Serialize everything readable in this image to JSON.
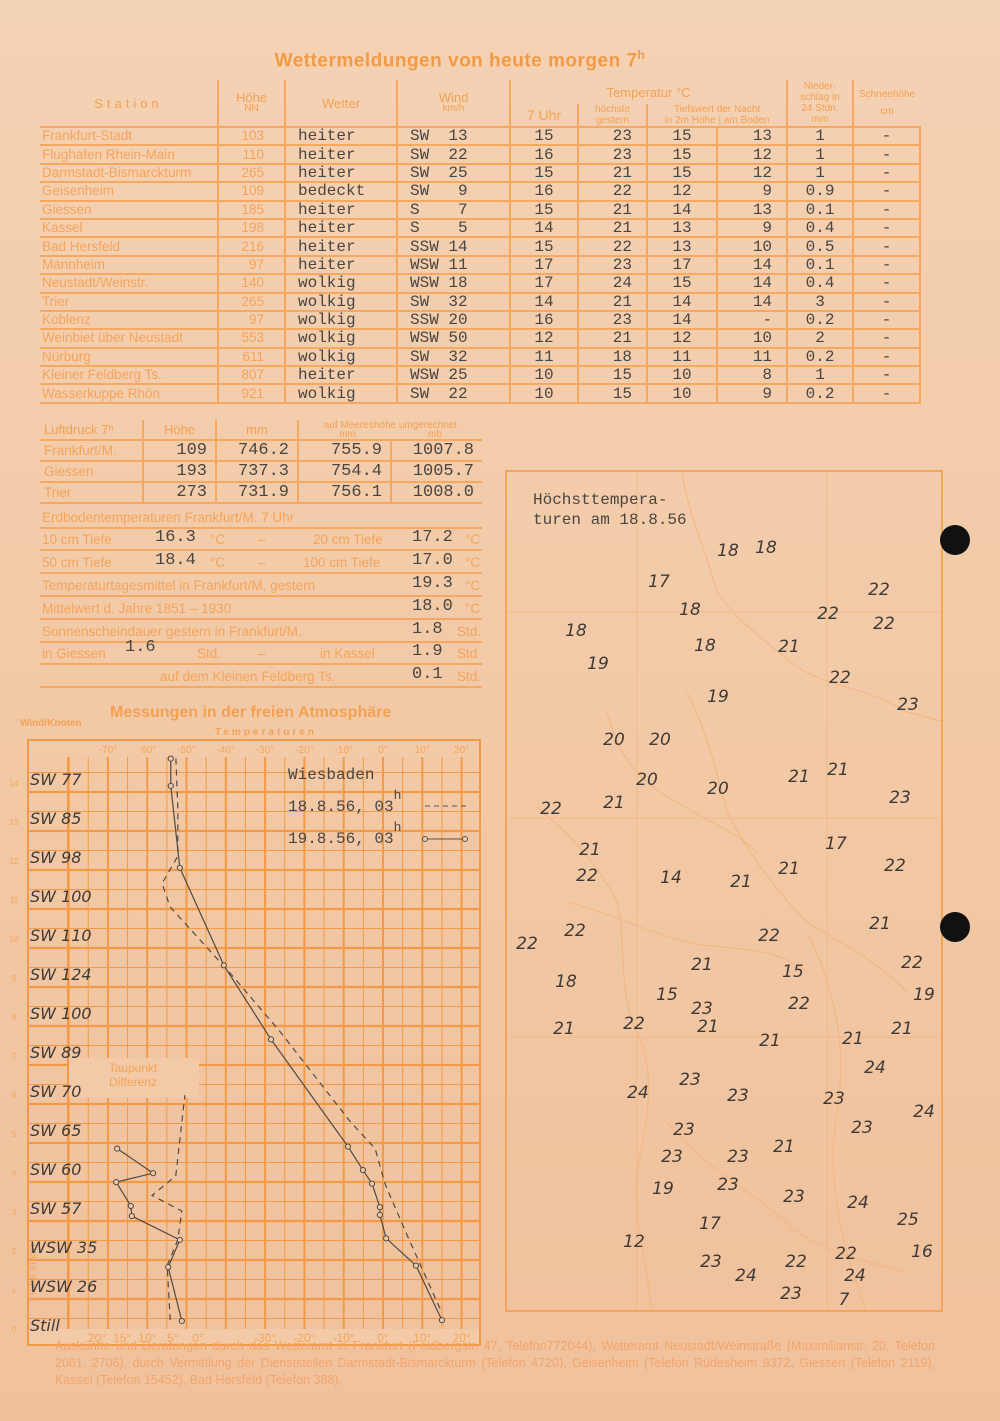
{
  "title": {
    "text": "Wettermeldungen von heute morgen 7",
    "sup": "h"
  },
  "weather_table": {
    "headers": {
      "station": "Station",
      "hoehe": "Höhe",
      "hoehe_unit": "NN",
      "wetter": "Wetter",
      "wind": "Wind",
      "wind_unit": "km/h",
      "temperatur": "Temperatur °C",
      "uhr7": "7 Uhr",
      "hoechste": "höchste gestern",
      "tiefstwert": "Tiefswert der Nacht",
      "in2m": "in 2m Höhe",
      "amboden": "am Boden",
      "niederschlag": "Nieder-schlag in 24 Stdn.",
      "niederschlag_unit": "mm",
      "schnee": "Schneehöhe",
      "schnee_unit": "cm"
    },
    "rows": [
      {
        "station": "Frankfurt-Stadt",
        "hoehe": "103",
        "wetter": "heiter",
        "wind_dir": "SW",
        "wind_speed": "13",
        "t7": "15",
        "tmax": "23",
        "tmin2m": "15",
        "tboden": "13",
        "nied": "1",
        "schnee": "-"
      },
      {
        "station": "Flughafen Rhein-Main",
        "hoehe": "110",
        "wetter": "heiter",
        "wind_dir": "SW",
        "wind_speed": "22",
        "t7": "16",
        "tmax": "23",
        "tmin2m": "15",
        "tboden": "12",
        "nied": "1",
        "schnee": "-"
      },
      {
        "station": "Darmstadt-Bismarckturm",
        "hoehe": "265",
        "wetter": "heiter",
        "wind_dir": "SW",
        "wind_speed": "25",
        "t7": "15",
        "tmax": "21",
        "tmin2m": "15",
        "tboden": "12",
        "nied": "1",
        "schnee": "-"
      },
      {
        "station": "Geisenheim",
        "hoehe": "109",
        "wetter": "bedeckt",
        "wind_dir": "SW",
        "wind_speed": "9",
        "t7": "16",
        "tmax": "22",
        "tmin2m": "12",
        "tboden": "9",
        "nied": "0.9",
        "schnee": "-"
      },
      {
        "station": "Giessen",
        "hoehe": "185",
        "wetter": "heiter",
        "wind_dir": "S",
        "wind_speed": "7",
        "t7": "15",
        "tmax": "21",
        "tmin2m": "14",
        "tboden": "13",
        "nied": "0.1",
        "schnee": "-"
      },
      {
        "station": "Kassel",
        "hoehe": "198",
        "wetter": "heiter",
        "wind_dir": "S",
        "wind_speed": "5",
        "t7": "14",
        "tmax": "21",
        "tmin2m": "13",
        "tboden": "9",
        "nied": "0.4",
        "schnee": "-"
      },
      {
        "station": "Bad Hersfeld",
        "hoehe": "216",
        "wetter": "heiter",
        "wind_dir": "SSW",
        "wind_speed": "14",
        "t7": "15",
        "tmax": "22",
        "tmin2m": "13",
        "tboden": "10",
        "nied": "0.5",
        "schnee": "-"
      },
      {
        "station": "Mannheim",
        "hoehe": "97",
        "wetter": "heiter",
        "wind_dir": "WSW",
        "wind_speed": "11",
        "t7": "17",
        "tmax": "23",
        "tmin2m": "17",
        "tboden": "14",
        "nied": "0.1",
        "schnee": "-"
      },
      {
        "station": "Neustadt/Weinstr.",
        "hoehe": "140",
        "wetter": "wolkig",
        "wind_dir": "WSW",
        "wind_speed": "18",
        "t7": "17",
        "tmax": "24",
        "tmin2m": "15",
        "tboden": "14",
        "nied": "0.4",
        "schnee": "-"
      },
      {
        "station": "Trier",
        "hoehe": "265",
        "wetter": "wolkig",
        "wind_dir": "SW",
        "wind_speed": "32",
        "t7": "14",
        "tmax": "21",
        "tmin2m": "14",
        "tboden": "14",
        "nied": "3",
        "schnee": "-"
      },
      {
        "station": "Koblenz",
        "hoehe": "97",
        "wetter": "wolkig",
        "wind_dir": "SSW",
        "wind_speed": "20",
        "t7": "16",
        "tmax": "23",
        "tmin2m": "14",
        "tboden": "-",
        "nied": "0.2",
        "schnee": "-"
      },
      {
        "station": "Weinbiet über Neustadt",
        "hoehe": "553",
        "wetter": "wolkig",
        "wind_dir": "WSW",
        "wind_speed": "50",
        "t7": "12",
        "tmax": "21",
        "tmin2m": "12",
        "tboden": "10",
        "nied": "2",
        "schnee": "-"
      },
      {
        "station": "Nürburg",
        "hoehe": "611",
        "wetter": "wolkig",
        "wind_dir": "SW",
        "wind_speed": "32",
        "t7": "11",
        "tmax": "18",
        "tmin2m": "11",
        "tboden": "11",
        "nied": "0.2",
        "schnee": "-"
      },
      {
        "station": "Kleiner Feldberg Ts.",
        "hoehe": "807",
        "wetter": "heiter",
        "wind_dir": "WSW",
        "wind_speed": "25",
        "t7": "10",
        "tmax": "15",
        "tmin2m": "10",
        "tboden": "8",
        "nied": "1",
        "schnee": "-"
      },
      {
        "station": "Wasserkuppe Rhön",
        "hoehe": "921",
        "wetter": "wolkig",
        "wind_dir": "SW",
        "wind_speed": "22",
        "t7": "10",
        "tmax": "15",
        "tmin2m": "10",
        "tboden": "9",
        "nied": "0.2",
        "schnee": "-"
      }
    ]
  },
  "luftdruck": {
    "headers": {
      "label": "Luftdruck 7ʰ",
      "hoehe": "Höhe",
      "mm": "mm",
      "meeres": "auf Meereshöhe umgerechnet",
      "meeres_mm": "mm",
      "meeres_mb": "mb"
    },
    "rows": [
      {
        "station": "Frankfurt/M.",
        "hoehe": "109",
        "mm": "746.2",
        "sea_mm": "755.9",
        "sea_mb": "1007.8"
      },
      {
        "station": "Giessen",
        "hoehe": "193",
        "mm": "737.3",
        "sea_mm": "754.4",
        "sea_mb": "1005.7"
      },
      {
        "station": "Trier",
        "hoehe": "273",
        "mm": "731.9",
        "sea_mm": "756.1",
        "sea_mb": "1008.0"
      }
    ]
  },
  "erdboden": {
    "title": "Erdbodentemperaturen Frankfurt/M. 7 Uhr",
    "l10": "10 cm Tiefe",
    "v10": "16.3",
    "l20": "20 cm Tiefe",
    "v20": "17.2",
    "l50": "50 cm Tiefe",
    "v50": "18.4",
    "l100": "100 cm Tiefe",
    "v100": "17.0",
    "unit_c": "°C",
    "dash": "–",
    "tagesmittel_label": "Temperaturtagesmittel in Frankfurt/M. gestern",
    "tagesmittel": "19.3",
    "mittelwert_label": "Mittelwert d. Jahre 1851 – 1930",
    "mittelwert": "18.0",
    "sonne_label": "Sonnenscheindauer gestern in Frankfurt/M.",
    "sonne_ffm": "1.8",
    "giessen_label": "in Giessen",
    "sonne_giessen": "1.6",
    "kassel_label": "in Kassel",
    "sonne_kassel": "1.9",
    "feldberg_label": "auf dem Kleinen Feldberg Ts.",
    "sonne_feldberg": "0.1",
    "unit_std": "Std.",
    "unit_std2": "Std"
  },
  "atmosphaere": {
    "title": "Messungen in der freien Atmosphäre",
    "wind_label": "Wind/Knoten",
    "temp_label": "Temperaturen",
    "height_label": "Höhe in km",
    "dew_label_1": "Taupunkt",
    "dew_label_2": "Differenz",
    "station": "Wiesbaden",
    "legend": [
      {
        "label": "18.8.56, 03",
        "sup": "h",
        "style": "dashed"
      },
      {
        "label": "19.8.56, 03",
        "sup": "h",
        "style": "solid-circles"
      }
    ],
    "wind": [
      "SW 77",
      "SW 85",
      "SW 98",
      "SW 100",
      "SW 110",
      "SW 124",
      "SW 100",
      "SW 89",
      "SW 70",
      "SW 65",
      "SW 60",
      "SW 57",
      "WSW 35",
      "WSW 26",
      "Still"
    ],
    "chart_data": {
      "type": "line",
      "temp_ticks_top": [
        "-70°",
        "-60°",
        "-50°",
        "-40°",
        "-30°",
        "-20°",
        "-10°",
        "0°",
        "10°",
        "20°"
      ],
      "temp_ticks_bottom": [
        "-30°",
        "-20°",
        "-10°",
        "0°",
        "10°",
        "20°"
      ],
      "dew_ticks": [
        "20°",
        "15°",
        "10°",
        "5°",
        "0°"
      ],
      "height_ticks": [
        "0",
        "1",
        "2",
        "3",
        "4",
        "5",
        "6",
        "7",
        "8",
        "9",
        "10",
        "11",
        "12",
        "13",
        "14"
      ],
      "xlim": [
        -70,
        20
      ],
      "ylim": [
        0,
        14.5
      ],
      "temperature_series": [
        {
          "name": "18.8.56, 03h",
          "style": "dashed",
          "points": [
            [
              14.5,
              0.5
            ],
            [
              5.6,
              2.5
            ],
            [
              0.5,
              3.7
            ],
            [
              -2,
              4.6
            ],
            [
              -8.4,
              5.3
            ],
            [
              -26.2,
              7.6
            ],
            [
              -38.9,
              9.1
            ],
            [
              -54.2,
              10.8
            ],
            [
              -56.2,
              11.4
            ],
            [
              -52.2,
              12.1
            ],
            [
              -52.2,
              13.3
            ],
            [
              -52.7,
              14.6
            ]
          ]
        },
        {
          "name": "19.8.56, 03h",
          "style": "solid",
          "points": [
            [
              15,
              0.2
            ],
            [
              8.4,
              1.6
            ],
            [
              0.8,
              2.3
            ],
            [
              -0.8,
              2.9
            ],
            [
              -0.8,
              3.1
            ],
            [
              -2.8,
              3.7
            ],
            [
              -5.1,
              4.05
            ],
            [
              -8.9,
              4.65
            ],
            [
              -28.5,
              7.4
            ],
            [
              -40.5,
              9.3
            ],
            [
              -51.7,
              11.8
            ],
            [
              -54,
              13.9
            ],
            [
              -54,
              14.6
            ]
          ]
        }
      ],
      "dewpoint_series": [
        {
          "name": "18.8.56, 03h",
          "style": "dashed",
          "points": [
            [
              5.5,
              0.2
            ],
            [
              6.1,
              1.6
            ],
            [
              4,
              2.26
            ],
            [
              3.2,
              3.0
            ],
            [
              9.1,
              3.4
            ],
            [
              4.4,
              3.9
            ],
            [
              2.6,
              5.97
            ]
          ]
        },
        {
          "name": "19.8.56, 03h",
          "style": "solid",
          "points": [
            [
              3.2,
              0.18
            ],
            [
              5.9,
              1.56
            ],
            [
              3.6,
              2.26
            ],
            [
              13.1,
              2.87
            ],
            [
              13.3,
              3.13
            ],
            [
              16.2,
              3.74
            ],
            [
              8.9,
              3.97
            ],
            [
              16,
              4.6
            ]
          ]
        }
      ]
    }
  },
  "map": {
    "title_1": "Höchsttempera-",
    "title_2": "turen am 18.8.56",
    "temperatures": [
      "18",
      "18",
      "17",
      "22",
      "22",
      "22",
      "18",
      "18",
      "18",
      "21",
      "19",
      "22",
      "19",
      "23",
      "20",
      "20",
      "21",
      "21",
      "20",
      "20",
      "23",
      "22",
      "21",
      "17",
      "21",
      "21",
      "22",
      "22",
      "14",
      "21",
      "21",
      "22",
      "22",
      "22",
      "21",
      "15",
      "22",
      "18",
      "15",
      "19",
      "23",
      "22",
      "21",
      "22",
      "21",
      "21",
      "21",
      "21",
      "24",
      "24",
      "23",
      "23",
      "23",
      "24",
      "23",
      "23",
      "21",
      "23",
      "23",
      "23",
      "19",
      "23",
      "24",
      "25",
      "17",
      "12",
      "22",
      "16",
      "23",
      "22",
      "24",
      "24",
      "23",
      "7"
    ]
  },
  "footer": "Auskünfte und Beratungen durch das Wetteramt in Frankfurt (Feldbergstr. 47, Telefon772044), Wetteramt Neustadt/Weinstraße (Maximilianstr. 20, Telefon 2061, 2706), durch Vermittlung der Dienststellen Darmstadt-Bismarckturm (Telefon 4720), Geisenheim (Telefon Rüdesheim 9372, Giessen (Telefon 2119), Kassel (Telefon 15452), Bad Hersfeld (Telefon 388).",
  "colors": {
    "paper": "#f2c9a6",
    "print_orange": "#f29a45",
    "typewriter": "#4a4540"
  }
}
